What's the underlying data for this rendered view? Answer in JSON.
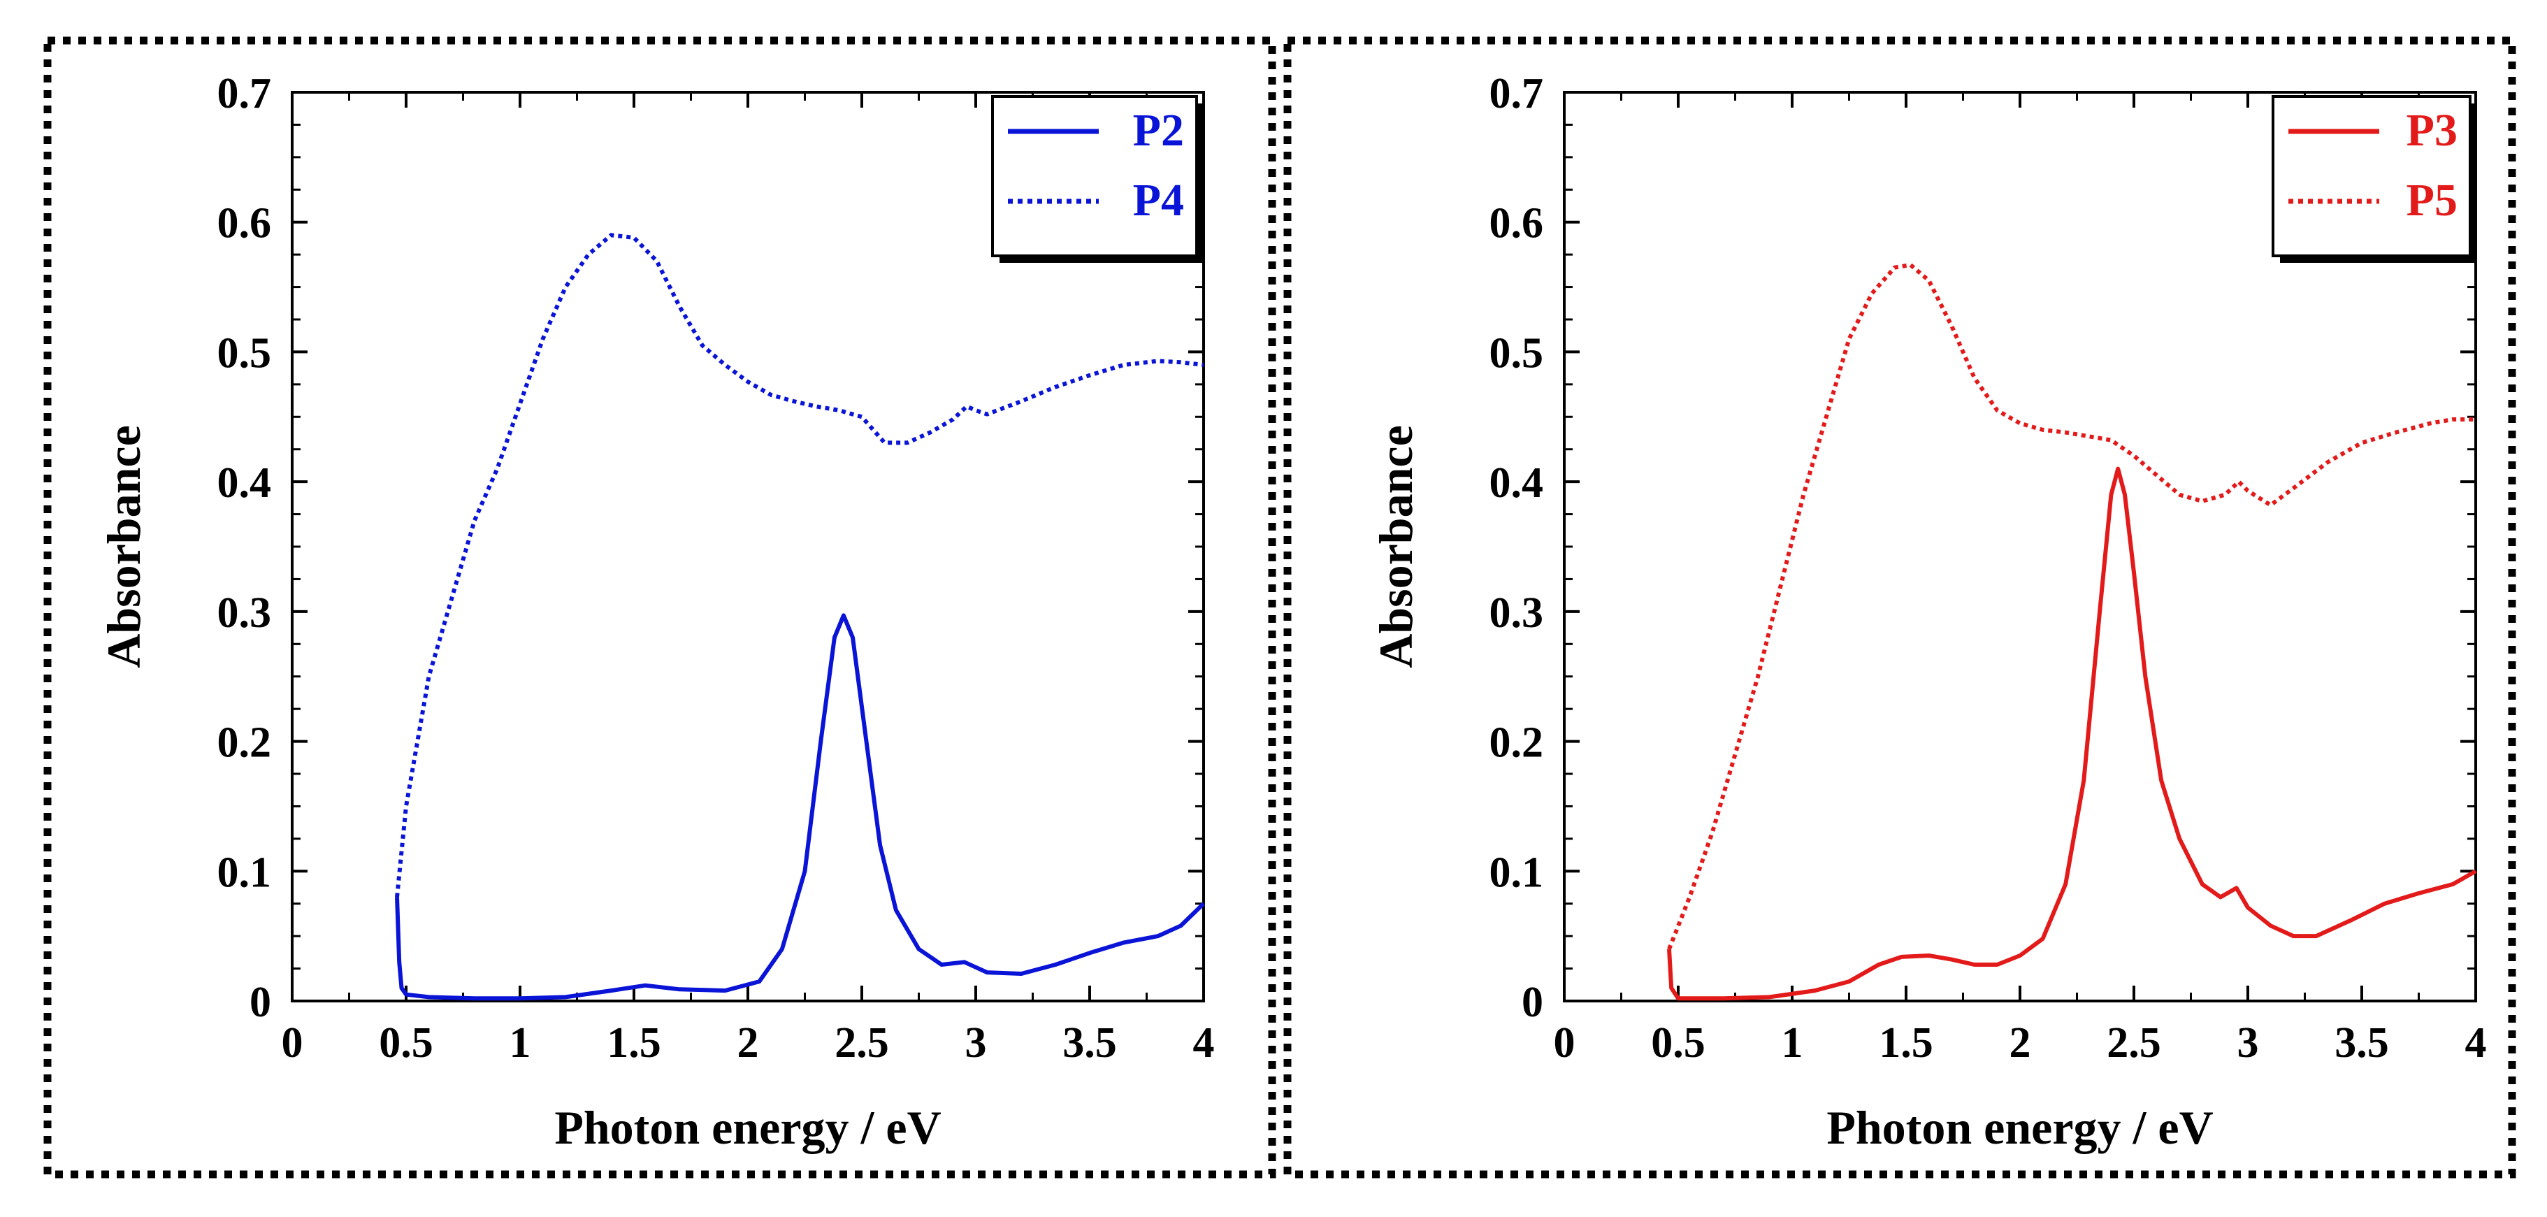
{
  "chart_data": [
    {
      "type": "line",
      "title": "",
      "xlabel": "Photon energy / eV",
      "ylabel": "Absorbance",
      "xlim": [
        0,
        4
      ],
      "ylim": [
        0,
        0.7
      ],
      "xticks": [
        "0",
        "0.5",
        "1",
        "1.5",
        "2",
        "2.5",
        "3",
        "3.5",
        "4"
      ],
      "yticks": [
        "0",
        "0.1",
        "0.2",
        "0.3",
        "0.4",
        "0.5",
        "0.6",
        "0.7"
      ],
      "legend_position": "top-right",
      "series": [
        {
          "name": "P2",
          "color": "#0a14d6",
          "style": "solid",
          "points": [
            [
              0.46,
              0.08
            ],
            [
              0.47,
              0.03
            ],
            [
              0.48,
              0.01
            ],
            [
              0.5,
              0.005
            ],
            [
              0.6,
              0.003
            ],
            [
              0.8,
              0.002
            ],
            [
              1.0,
              0.002
            ],
            [
              1.2,
              0.003
            ],
            [
              1.4,
              0.008
            ],
            [
              1.55,
              0.012
            ],
            [
              1.7,
              0.009
            ],
            [
              1.9,
              0.008
            ],
            [
              2.05,
              0.015
            ],
            [
              2.15,
              0.04
            ],
            [
              2.25,
              0.1
            ],
            [
              2.32,
              0.2
            ],
            [
              2.38,
              0.28
            ],
            [
              2.42,
              0.297
            ],
            [
              2.46,
              0.28
            ],
            [
              2.52,
              0.2
            ],
            [
              2.58,
              0.12
            ],
            [
              2.65,
              0.07
            ],
            [
              2.75,
              0.04
            ],
            [
              2.85,
              0.028
            ],
            [
              2.95,
              0.03
            ],
            [
              3.05,
              0.022
            ],
            [
              3.2,
              0.021
            ],
            [
              3.35,
              0.028
            ],
            [
              3.5,
              0.037
            ],
            [
              3.65,
              0.045
            ],
            [
              3.8,
              0.05
            ],
            [
              3.9,
              0.058
            ],
            [
              4.0,
              0.075
            ]
          ]
        },
        {
          "name": "P4",
          "color": "#0a14d6",
          "style": "dotted",
          "points": [
            [
              0.46,
              0.08
            ],
            [
              0.5,
              0.15
            ],
            [
              0.55,
              0.2
            ],
            [
              0.6,
              0.25
            ],
            [
              0.7,
              0.31
            ],
            [
              0.8,
              0.37
            ],
            [
              0.9,
              0.41
            ],
            [
              1.0,
              0.46
            ],
            [
              1.1,
              0.51
            ],
            [
              1.2,
              0.55
            ],
            [
              1.3,
              0.575
            ],
            [
              1.4,
              0.59
            ],
            [
              1.5,
              0.588
            ],
            [
              1.6,
              0.57
            ],
            [
              1.7,
              0.535
            ],
            [
              1.8,
              0.505
            ],
            [
              1.9,
              0.49
            ],
            [
              2.0,
              0.477
            ],
            [
              2.1,
              0.467
            ],
            [
              2.2,
              0.462
            ],
            [
              2.3,
              0.458
            ],
            [
              2.4,
              0.455
            ],
            [
              2.5,
              0.45
            ],
            [
              2.6,
              0.43
            ],
            [
              2.7,
              0.43
            ],
            [
              2.8,
              0.438
            ],
            [
              2.9,
              0.448
            ],
            [
              2.96,
              0.458
            ],
            [
              3.0,
              0.455
            ],
            [
              3.05,
              0.452
            ],
            [
              3.2,
              0.462
            ],
            [
              3.35,
              0.473
            ],
            [
              3.5,
              0.482
            ],
            [
              3.65,
              0.49
            ],
            [
              3.8,
              0.493
            ],
            [
              3.9,
              0.492
            ],
            [
              4.0,
              0.49
            ]
          ]
        }
      ]
    },
    {
      "type": "line",
      "title": "",
      "xlabel": "Photon energy / eV",
      "ylabel": "Absorbance",
      "xlim": [
        0,
        4
      ],
      "ylim": [
        0,
        0.7
      ],
      "xticks": [
        "0",
        "0.5",
        "1",
        "1.5",
        "2",
        "2.5",
        "3",
        "3.5",
        "4"
      ],
      "yticks": [
        "0",
        "0.1",
        "0.2",
        "0.3",
        "0.4",
        "0.5",
        "0.6",
        "0.7"
      ],
      "legend_position": "top-right",
      "series": [
        {
          "name": "P3",
          "color": "#e31a1a",
          "style": "solid",
          "points": [
            [
              0.46,
              0.04
            ],
            [
              0.47,
              0.01
            ],
            [
              0.5,
              0.002
            ],
            [
              0.7,
              0.002
            ],
            [
              0.9,
              0.003
            ],
            [
              1.1,
              0.008
            ],
            [
              1.25,
              0.015
            ],
            [
              1.38,
              0.028
            ],
            [
              1.48,
              0.034
            ],
            [
              1.6,
              0.035
            ],
            [
              1.7,
              0.032
            ],
            [
              1.8,
              0.028
            ],
            [
              1.9,
              0.028
            ],
            [
              2.0,
              0.035
            ],
            [
              2.1,
              0.048
            ],
            [
              2.2,
              0.09
            ],
            [
              2.28,
              0.17
            ],
            [
              2.35,
              0.3
            ],
            [
              2.4,
              0.39
            ],
            [
              2.43,
              0.41
            ],
            [
              2.46,
              0.39
            ],
            [
              2.5,
              0.33
            ],
            [
              2.55,
              0.25
            ],
            [
              2.62,
              0.17
            ],
            [
              2.7,
              0.125
            ],
            [
              2.8,
              0.09
            ],
            [
              2.88,
              0.08
            ],
            [
              2.95,
              0.087
            ],
            [
              3.0,
              0.072
            ],
            [
              3.1,
              0.058
            ],
            [
              3.2,
              0.05
            ],
            [
              3.3,
              0.05
            ],
            [
              3.45,
              0.062
            ],
            [
              3.6,
              0.075
            ],
            [
              3.75,
              0.083
            ],
            [
              3.9,
              0.09
            ],
            [
              4.0,
              0.1
            ]
          ]
        },
        {
          "name": "P5",
          "color": "#e31a1a",
          "style": "dotted",
          "points": [
            [
              0.46,
              0.04
            ],
            [
              0.55,
              0.08
            ],
            [
              0.65,
              0.13
            ],
            [
              0.75,
              0.19
            ],
            [
              0.85,
              0.25
            ],
            [
              0.95,
              0.32
            ],
            [
              1.05,
              0.39
            ],
            [
              1.15,
              0.45
            ],
            [
              1.25,
              0.51
            ],
            [
              1.35,
              0.545
            ],
            [
              1.45,
              0.565
            ],
            [
              1.52,
              0.567
            ],
            [
              1.6,
              0.555
            ],
            [
              1.7,
              0.52
            ],
            [
              1.8,
              0.48
            ],
            [
              1.9,
              0.455
            ],
            [
              2.0,
              0.445
            ],
            [
              2.1,
              0.44
            ],
            [
              2.2,
              0.438
            ],
            [
              2.3,
              0.435
            ],
            [
              2.4,
              0.432
            ],
            [
              2.5,
              0.42
            ],
            [
              2.6,
              0.405
            ],
            [
              2.7,
              0.39
            ],
            [
              2.8,
              0.385
            ],
            [
              2.9,
              0.39
            ],
            [
              2.96,
              0.4
            ],
            [
              3.0,
              0.393
            ],
            [
              3.1,
              0.382
            ],
            [
              3.2,
              0.395
            ],
            [
              3.35,
              0.415
            ],
            [
              3.5,
              0.43
            ],
            [
              3.65,
              0.438
            ],
            [
              3.8,
              0.445
            ],
            [
              3.9,
              0.448
            ],
            [
              4.0,
              0.448
            ]
          ]
        }
      ]
    }
  ]
}
